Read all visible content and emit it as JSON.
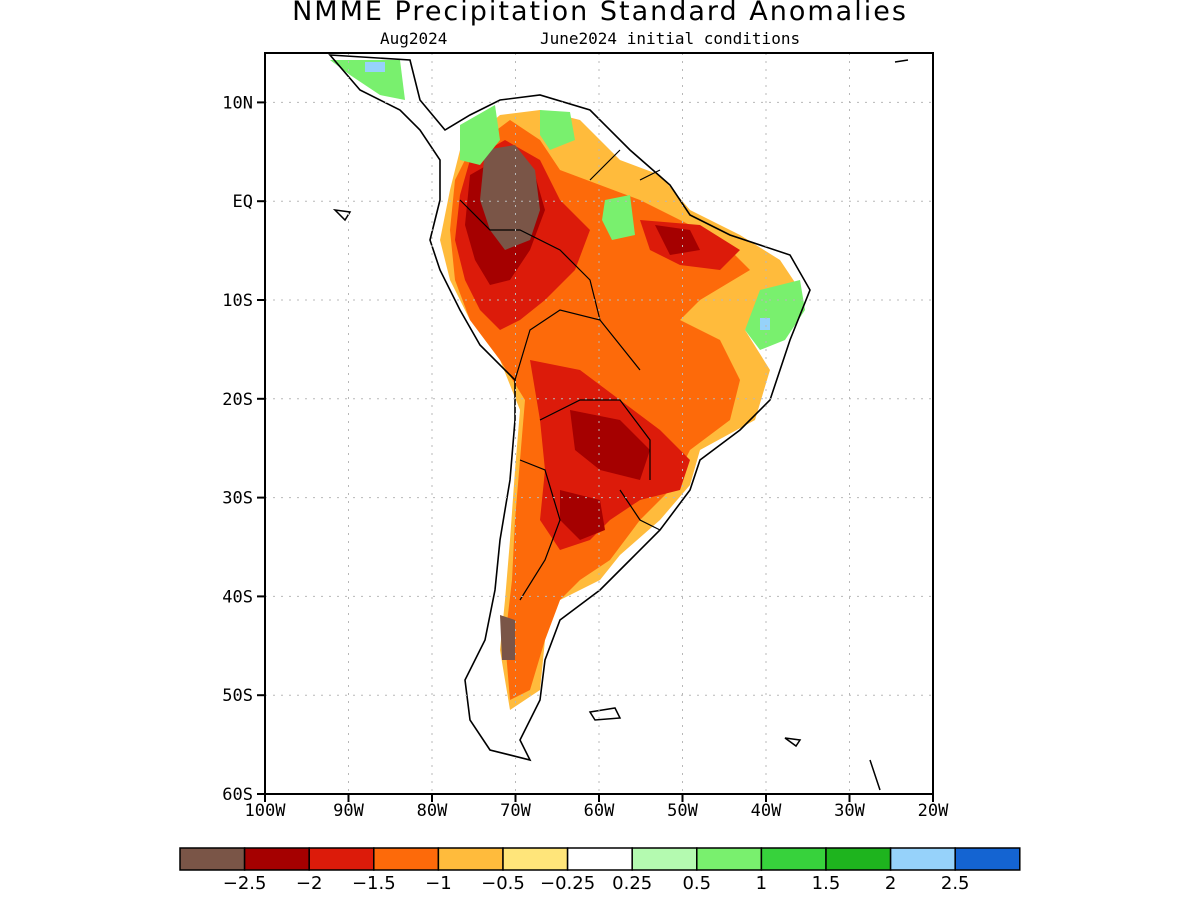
{
  "title": "NMME Precipitation Standard Anomalies",
  "subtitle_left": "Aug2024",
  "subtitle_right": "June2024 initial conditions",
  "map": {
    "lon_range": [
      -100,
      -20
    ],
    "lat_range": [
      -60,
      15
    ],
    "grid": "dotted",
    "y_ticks": [
      {
        "lat": 10,
        "label": "10N"
      },
      {
        "lat": 0,
        "label": "EQ"
      },
      {
        "lat": -10,
        "label": "10S"
      },
      {
        "lat": -20,
        "label": "20S"
      },
      {
        "lat": -30,
        "label": "30S"
      },
      {
        "lat": -40,
        "label": "40S"
      },
      {
        "lat": -50,
        "label": "50S"
      },
      {
        "lat": -60,
        "label": "60S"
      }
    ],
    "x_ticks": [
      {
        "lon": -100,
        "label": "100W"
      },
      {
        "lon": -90,
        "label": "90W"
      },
      {
        "lon": -80,
        "label": "80W"
      },
      {
        "lon": -70,
        "label": "70W"
      },
      {
        "lon": -60,
        "label": "60W"
      },
      {
        "lon": -50,
        "label": "50W"
      },
      {
        "lon": -40,
        "label": "40W"
      },
      {
        "lon": -30,
        "label": "30W"
      },
      {
        "lon": -20,
        "label": "20W"
      }
    ]
  },
  "colorbar": {
    "colors": [
      "#7a5547",
      "#a50000",
      "#dc1b0a",
      "#fd6a0a",
      "#ffbb3c",
      "#ffe57a",
      "#ffffff",
      "#b4fab0",
      "#79f06e",
      "#37d23c",
      "#1eb41e",
      "#96d2fa",
      "#1464d2"
    ],
    "labels": [
      "−2.5",
      "−2",
      "−1.5",
      "−1",
      "−0.5",
      "−0.25",
      "0.25",
      "0.5",
      "1",
      "1.5",
      "2",
      "2.5"
    ]
  }
}
